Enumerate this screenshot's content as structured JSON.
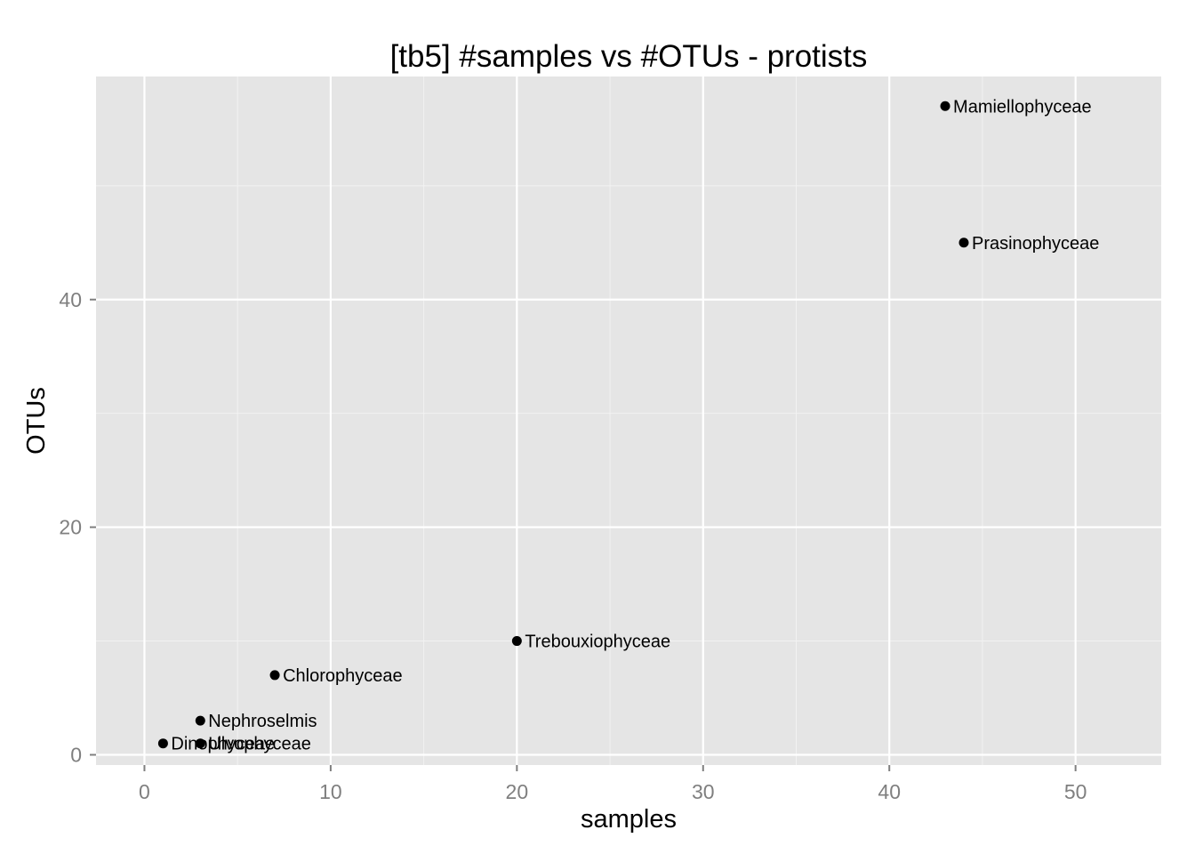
{
  "chart_data": {
    "type": "scatter",
    "title": "[tb5] #samples vs #OTUs - protists",
    "xlabel": "samples",
    "ylabel": "OTUs",
    "xlim": [
      -2.6,
      54.6
    ],
    "ylim": [
      -0.9,
      59.6
    ],
    "x_ticks": [
      0,
      10,
      20,
      30,
      40,
      50
    ],
    "y_ticks": [
      0,
      20,
      40
    ],
    "x_tick_labels": [
      "0",
      "10",
      "20",
      "30",
      "40",
      "50"
    ],
    "y_tick_labels": [
      "0",
      "20",
      "40"
    ],
    "grid": true,
    "legend": "none",
    "points": [
      {
        "label": "Mamiellophyceae",
        "x": 43,
        "y": 57
      },
      {
        "label": "Prasinophyceae",
        "x": 44,
        "y": 45
      },
      {
        "label": "Trebouxiophyceae",
        "x": 20,
        "y": 10
      },
      {
        "label": "Chlorophyceae",
        "x": 7,
        "y": 7
      },
      {
        "label": "Nephroselmis",
        "x": 3,
        "y": 3
      },
      {
        "label": "Ulvophyceae",
        "x": 3,
        "y": 1
      },
      {
        "label": "Dinophyceae",
        "x": 1,
        "y": 1
      }
    ]
  },
  "colors": {
    "panel_background": "#e5e5e5",
    "grid_major": "#ffffff",
    "grid_minor": "#f2f2f2",
    "point": "#000000",
    "tick_label": "#7f7f7f"
  }
}
